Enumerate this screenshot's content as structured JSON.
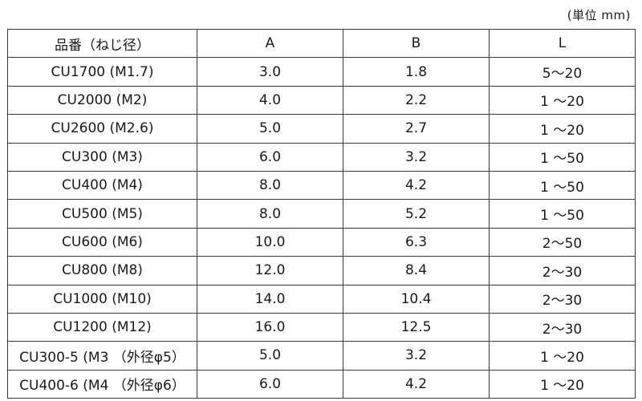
{
  "unit_note": "(単位 mm)",
  "table": {
    "headers": [
      "品番（ねじ径）",
      "A",
      "B",
      "L"
    ],
    "rows": [
      [
        "CU1700 (M1.7)",
        "3.0",
        "1.8",
        "5～20"
      ],
      [
        "CU2000 (M2)",
        "4.0",
        "2.2",
        "1 ～20"
      ],
      [
        "CU2600 (M2.6)",
        "5.0",
        "2.7",
        "1 ～20"
      ],
      [
        "CU300 (M3)",
        "6.0",
        "3.2",
        "1 ～50"
      ],
      [
        "CU400 (M4)",
        "8.0",
        "4.2",
        "1 ～50"
      ],
      [
        "CU500 (M5)",
        "8.0",
        "5.2",
        "1 ～50"
      ],
      [
        "CU600 (M6)",
        "10.0",
        "6.3",
        "2～50"
      ],
      [
        "CU800 (M8)",
        "12.0",
        "8.4",
        "2～30"
      ],
      [
        "CU1000 (M10)",
        "14.0",
        "10.4",
        "2～30"
      ],
      [
        "CU1200 (M12)",
        "16.0",
        "12.5",
        "2～30"
      ],
      [
        "CU300-5 (M3 （外径φ5）",
        "5.0",
        "3.2",
        "1 ～20"
      ],
      [
        "CU400-6 (M4 （外径φ6）",
        "6.0",
        "4.2",
        "1 ～20"
      ]
    ]
  }
}
